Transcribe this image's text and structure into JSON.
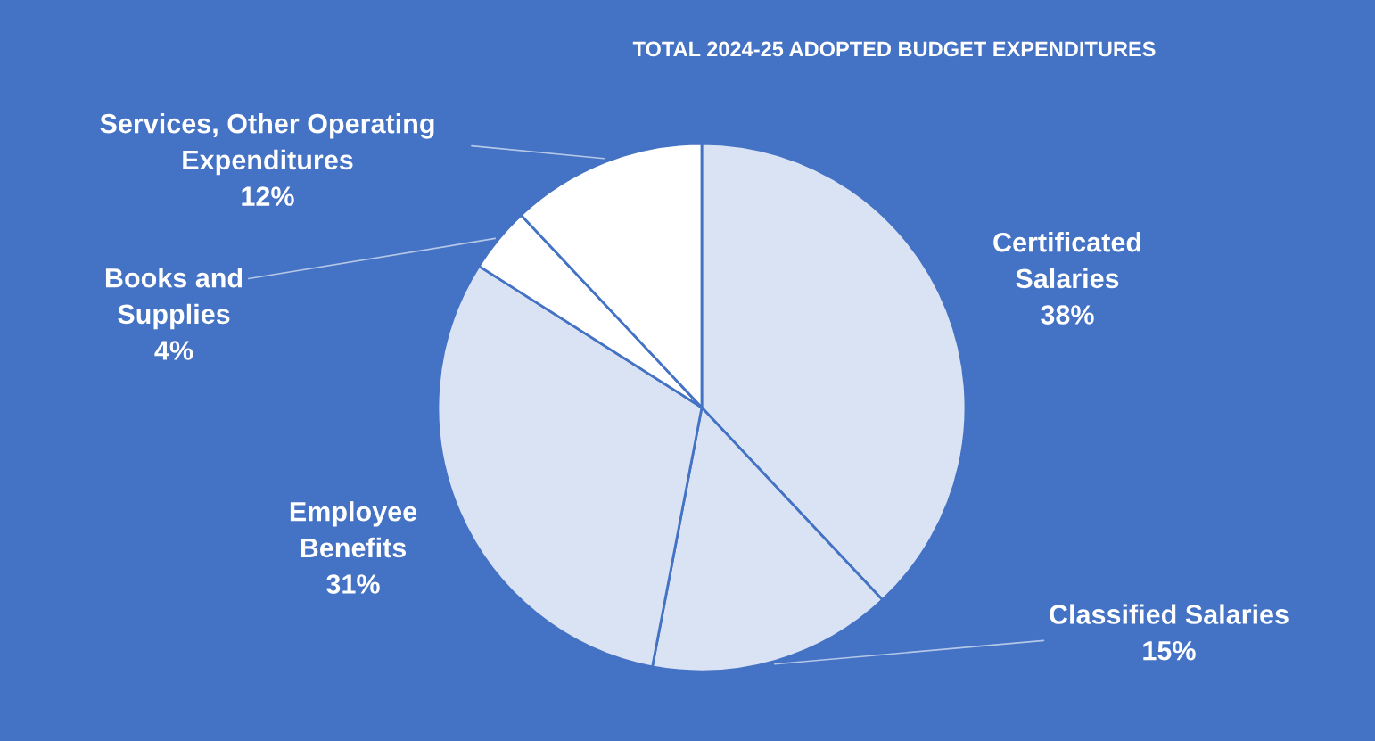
{
  "chart_data": {
    "type": "pie",
    "title": "TOTAL 2024-25 ADOPTED BUDGET EXPENDITURES",
    "categories": [
      "Certificated Salaries",
      "Classified Salaries",
      "Employee Benefits",
      "Books and Supplies",
      "Services, Other Operating Expenditures"
    ],
    "values": [
      38,
      15,
      31,
      4,
      12
    ],
    "colors": [
      "#dae3f3",
      "#dae3f3",
      "#dae3f3",
      "#ffffff",
      "#ffffff"
    ],
    "value_labels": [
      "38%",
      "15%",
      "31%",
      "4%",
      "12%"
    ]
  }
}
